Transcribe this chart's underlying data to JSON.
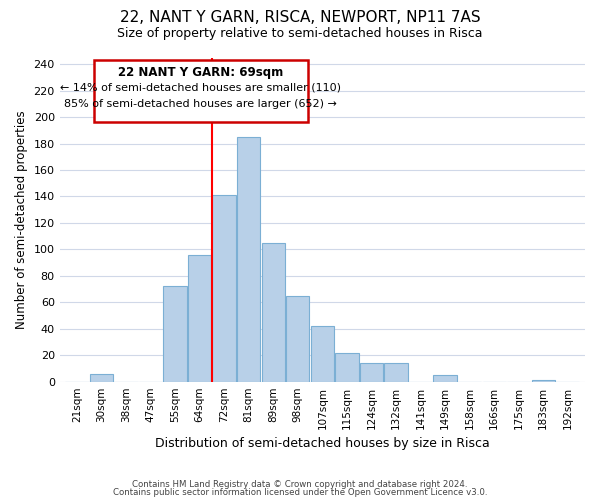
{
  "title": "22, NANT Y GARN, RISCA, NEWPORT, NP11 7AS",
  "subtitle": "Size of property relative to semi-detached houses in Risca",
  "xlabel": "Distribution of semi-detached houses by size in Risca",
  "ylabel": "Number of semi-detached properties",
  "bin_labels": [
    "21sqm",
    "30sqm",
    "38sqm",
    "47sqm",
    "55sqm",
    "64sqm",
    "72sqm",
    "81sqm",
    "89sqm",
    "98sqm",
    "107sqm",
    "115sqm",
    "124sqm",
    "132sqm",
    "141sqm",
    "149sqm",
    "158sqm",
    "166sqm",
    "175sqm",
    "183sqm",
    "192sqm"
  ],
  "bar_values": [
    0,
    6,
    0,
    0,
    72,
    96,
    141,
    185,
    105,
    65,
    42,
    22,
    14,
    14,
    0,
    5,
    0,
    0,
    0,
    1,
    0
  ],
  "bar_color": "#b8d0e8",
  "bar_edge_color": "#7bafd4",
  "highlight_bin_index": 6,
  "annotation_title": "22 NANT Y GARN: 69sqm",
  "annotation_line1": "← 14% of semi-detached houses are smaller (110)",
  "annotation_line2": "85% of semi-detached houses are larger (652) →",
  "annotation_box_color": "#ffffff",
  "annotation_box_edge": "#cc0000",
  "ylim": [
    0,
    245
  ],
  "yticks": [
    0,
    20,
    40,
    60,
    80,
    100,
    120,
    140,
    160,
    180,
    200,
    220,
    240
  ],
  "footer_line1": "Contains HM Land Registry data © Crown copyright and database right 2024.",
  "footer_line2": "Contains public sector information licensed under the Open Government Licence v3.0.",
  "background_color": "#ffffff",
  "grid_color": "#d0d8e8"
}
